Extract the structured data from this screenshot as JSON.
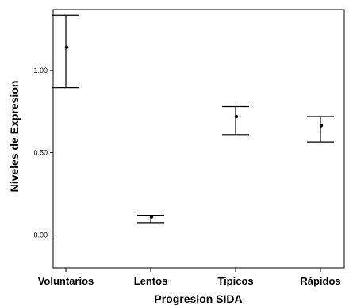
{
  "chart_data": {
    "type": "errorbar",
    "xlabel": "Progresion SIDA",
    "ylabel": "Niveles de Expresion",
    "categories": [
      "Voluntarios",
      "Lentos",
      "Tipicos",
      "Rápidos"
    ],
    "series": [
      {
        "mean": [
          1.14,
          0.11,
          0.72,
          0.665
        ],
        "lower": [
          0.895,
          0.075,
          0.61,
          0.565
        ],
        "upper": [
          1.335,
          0.12,
          0.78,
          0.72
        ]
      }
    ],
    "yticks": [
      0.0,
      0.5,
      1.0
    ],
    "ytick_labels": [
      "0.00",
      "0.50",
      "1.00"
    ],
    "ylim": [
      -0.2,
      1.37
    ],
    "grid": false,
    "legend": "none",
    "colors": {
      "marks": "#000000",
      "background": "#ffffff"
    }
  }
}
